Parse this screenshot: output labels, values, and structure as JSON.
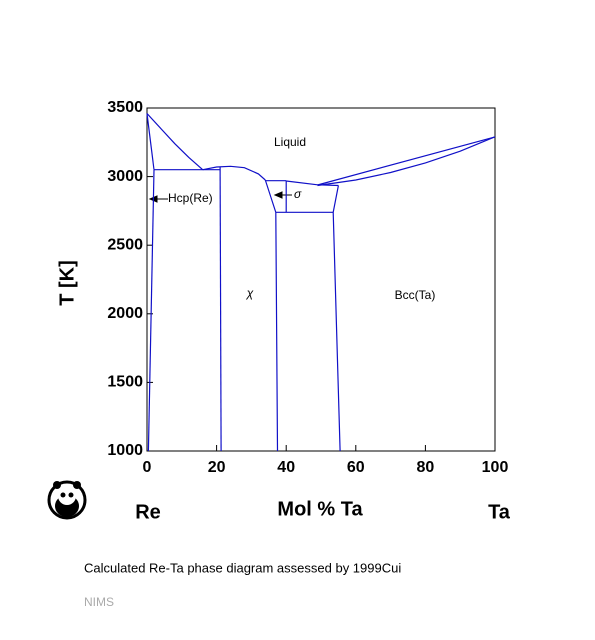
{
  "chart_data": {
    "type": "phase-diagram",
    "caption": "Calculated Re-Ta phase diagram assessed by 1999Cui",
    "source": "NIMS",
    "xlabel": "Mol % Ta",
    "ylabel": "T [K]",
    "left_element": "Re",
    "right_element": "Ta",
    "xlim": [
      0,
      100
    ],
    "ylim": [
      1000,
      3500
    ],
    "xticks": [
      0,
      20,
      40,
      60,
      80,
      100
    ],
    "yticks": [
      1000,
      1500,
      2000,
      2500,
      3000,
      3500
    ],
    "annotations": [
      "Liquid",
      "Hcp(Re)",
      "χ",
      "σ",
      "Bcc(Ta)"
    ],
    "series": [
      {
        "color": "#1010c8",
        "x": [
          0,
          4,
          8,
          12,
          16
        ],
        "y": [
          3460,
          3350,
          3240,
          3140,
          3050
        ]
      },
      {
        "color": "#1010c8",
        "x": [
          0,
          2
        ],
        "y": [
          3460,
          3050
        ]
      },
      {
        "color": "#1010c8",
        "x": [
          2,
          0.4
        ],
        "y": [
          3050,
          1000
        ]
      },
      {
        "color": "#1010c8",
        "x": [
          2,
          21
        ],
        "y": [
          3050,
          3050
        ]
      },
      {
        "color": "#1010c8",
        "x": [
          16,
          20,
          24,
          28,
          32,
          34
        ],
        "y": [
          3050,
          3070,
          3075,
          3065,
          3020,
          2975
        ]
      },
      {
        "color": "#1010c8",
        "x": [
          21,
          21.3
        ],
        "y": [
          3070,
          1000
        ]
      },
      {
        "color": "#1010c8",
        "x": [
          34,
          37,
          37.5
        ],
        "y": [
          2975,
          2740,
          1000
        ]
      },
      {
        "color": "#1010c8",
        "x": [
          34,
          40
        ],
        "y": [
          2970,
          2970
        ]
      },
      {
        "color": "#1010c8",
        "x": [
          40,
          40
        ],
        "y": [
          2970,
          2740
        ]
      },
      {
        "color": "#1010c8",
        "x": [
          40,
          49,
          55
        ],
        "y": [
          2968,
          2940,
          2935
        ]
      },
      {
        "color": "#1010c8",
        "x": [
          37,
          53.5
        ],
        "y": [
          2740,
          2740
        ]
      },
      {
        "color": "#1010c8",
        "x": [
          55,
          53.5,
          55.5
        ],
        "y": [
          2935,
          2740,
          1000
        ]
      },
      {
        "color": "#1010c8",
        "x": [
          49,
          100
        ],
        "y": [
          2939,
          3289
        ]
      },
      {
        "color": "#1010c8",
        "x": [
          49,
          60,
          70,
          80,
          90,
          100
        ],
        "y": [
          2935,
          2975,
          3030,
          3100,
          3185,
          3290
        ]
      }
    ]
  }
}
